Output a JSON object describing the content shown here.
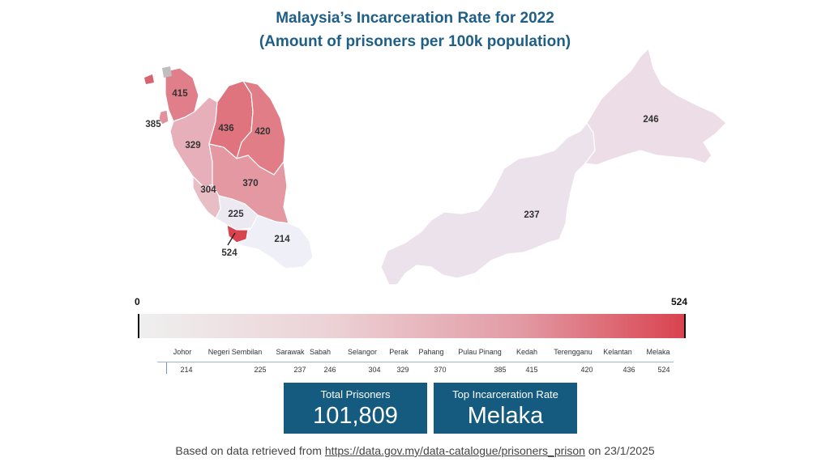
{
  "title_line1": "Malaysia’s Incarceration Rate for 2022",
  "title_line2": "(Amount of prisoners per 100k population)",
  "colors": {
    "low": "#eeeff7",
    "high": "#d9434f",
    "title": "#1f5f86",
    "kpi_bg": "#155b80"
  },
  "map": {
    "regions": [
      {
        "name": "Johor",
        "value": 214
      },
      {
        "name": "Negeri Sembilan",
        "value": 225
      },
      {
        "name": "Sarawak",
        "value": 237
      },
      {
        "name": "Sabah",
        "value": 246
      },
      {
        "name": "Selangor",
        "value": 304
      },
      {
        "name": "Perak",
        "value": 329
      },
      {
        "name": "Pahang",
        "value": 370
      },
      {
        "name": "Pulau Pinang",
        "value": 385
      },
      {
        "name": "Kedah",
        "value": 415
      },
      {
        "name": "Terengganu",
        "value": 420
      },
      {
        "name": "Kelantan",
        "value": 436
      },
      {
        "name": "Melaka",
        "value": 524
      }
    ]
  },
  "legend": {
    "min_label": "0",
    "max_label": "524"
  },
  "kpis": {
    "total_label": "Total Prisoners",
    "total_value": "101,809",
    "top_label": "Top Incarceration Rate",
    "top_value": "Melaka"
  },
  "footer": {
    "prefix": "Based on data retrieved from ",
    "link_text": "https://data.gov.my/data-catalogue/prisoners_prison",
    "suffix": " on 23/1/2025"
  }
}
